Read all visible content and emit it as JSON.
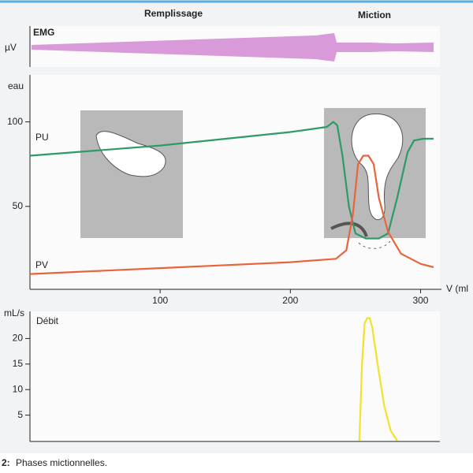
{
  "phases": [
    "Remplissage",
    "Miction"
  ],
  "emg": {
    "label": "EMG",
    "unit": "µV"
  },
  "caption": {
    "number": "2:",
    "text": "Phases mictionnelles."
  },
  "chart_data": [
    {
      "type": "line",
      "y_label": "eau",
      "x_label": "V (ml",
      "xlim": [
        0,
        310
      ],
      "xticks": [
        100,
        200,
        300
      ],
      "ylim": [
        0,
        125
      ],
      "yticks": [
        50,
        100
      ],
      "series": [
        {
          "name": "PU",
          "color": "#2e9a66",
          "x": [
            0,
            100,
            200,
            228,
            233,
            236,
            240,
            245,
            250,
            258,
            268,
            275,
            282,
            290,
            295,
            302,
            310
          ],
          "values": [
            80,
            86,
            94,
            97,
            100,
            98,
            80,
            50,
            34,
            31,
            31,
            34,
            55,
            82,
            89,
            90,
            90
          ]
        },
        {
          "name": "PV",
          "color": "#e8643c",
          "x": [
            0,
            100,
            200,
            235,
            243,
            248,
            252,
            256,
            260,
            264,
            268,
            275,
            285,
            300,
            310
          ],
          "values": [
            10,
            13.5,
            17,
            19,
            24,
            45,
            75,
            80,
            80,
            75,
            55,
            35,
            22,
            16,
            14
          ]
        }
      ]
    },
    {
      "type": "line",
      "y_label": "mL/s",
      "xlim": [
        0,
        310
      ],
      "ylim": [
        0,
        25
      ],
      "yticks": [
        5,
        10,
        15,
        20
      ],
      "series": [
        {
          "name": "Débit",
          "color": "#f2e22c",
          "x": [
            253,
            255,
            257,
            259,
            261,
            263,
            267,
            272,
            277,
            282
          ],
          "values": [
            0,
            15,
            23,
            24,
            24,
            22,
            15,
            7,
            2,
            0
          ]
        }
      ]
    }
  ]
}
